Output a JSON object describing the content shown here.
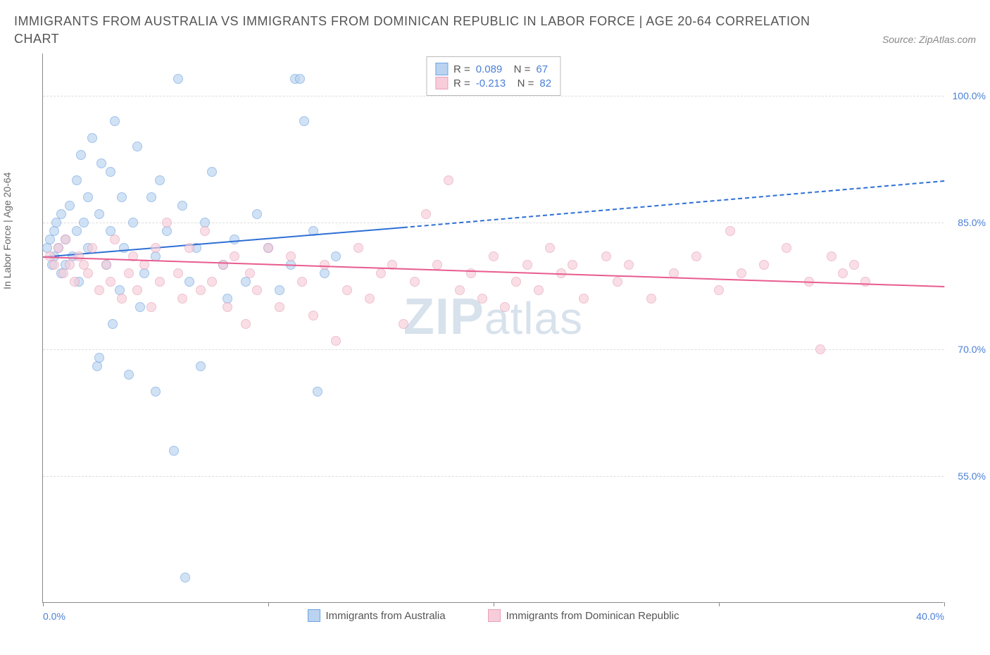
{
  "title": "IMMIGRANTS FROM AUSTRALIA VS IMMIGRANTS FROM DOMINICAN REPUBLIC IN LABOR FORCE | AGE 20-64 CORRELATION",
  "subtitle": "CHART",
  "source": "Source: ZipAtlas.com",
  "ylabel": "In Labor Force | Age 20-64",
  "watermark_a": "ZIP",
  "watermark_b": "atlas",
  "xaxis": {
    "min": 0,
    "max": 40,
    "ticks": [
      0,
      10,
      20,
      30,
      40
    ],
    "tick_labels": [
      "0.0%",
      "",
      "",
      "",
      "40.0%"
    ]
  },
  "yaxis": {
    "min": 40,
    "max": 105,
    "ticks": [
      55,
      70,
      85,
      100
    ],
    "tick_labels": [
      "55.0%",
      "70.0%",
      "85.0%",
      "100.0%"
    ]
  },
  "series": [
    {
      "key": "aus",
      "label": "Immigrants from Australia",
      "fill": "#b9d3f0",
      "stroke": "#6fa3e0",
      "line": "#2e6fd6",
      "R": "0.089",
      "N": "67",
      "reg": {
        "x0": 0,
        "y0": 81,
        "x1_solid": 16,
        "y1_solid": 84.5,
        "x1_dash": 40,
        "y1_dash": 90
      },
      "points": [
        [
          0.2,
          82
        ],
        [
          0.3,
          83
        ],
        [
          0.4,
          80
        ],
        [
          0.5,
          84
        ],
        [
          0.5,
          81
        ],
        [
          0.6,
          85
        ],
        [
          0.7,
          82
        ],
        [
          0.8,
          86
        ],
        [
          0.8,
          79
        ],
        [
          1.0,
          83
        ],
        [
          1.0,
          80
        ],
        [
          1.2,
          87
        ],
        [
          1.3,
          81
        ],
        [
          1.5,
          90
        ],
        [
          1.5,
          84
        ],
        [
          1.6,
          78
        ],
        [
          1.7,
          93
        ],
        [
          1.8,
          85
        ],
        [
          2.0,
          88
        ],
        [
          2.0,
          82
        ],
        [
          2.2,
          95
        ],
        [
          2.4,
          68
        ],
        [
          2.5,
          86
        ],
        [
          2.6,
          92
        ],
        [
          2.8,
          80
        ],
        [
          3.0,
          84
        ],
        [
          3.0,
          91
        ],
        [
          3.2,
          97
        ],
        [
          3.4,
          77
        ],
        [
          3.5,
          88
        ],
        [
          3.6,
          82
        ],
        [
          3.8,
          67
        ],
        [
          4.0,
          85
        ],
        [
          4.2,
          94
        ],
        [
          4.5,
          79
        ],
        [
          4.8,
          88
        ],
        [
          5.0,
          81
        ],
        [
          5.0,
          65
        ],
        [
          5.2,
          90
        ],
        [
          5.5,
          84
        ],
        [
          5.8,
          58
        ],
        [
          6.0,
          102
        ],
        [
          6.2,
          87
        ],
        [
          6.5,
          78
        ],
        [
          6.8,
          82
        ],
        [
          7.0,
          68
        ],
        [
          7.2,
          85
        ],
        [
          7.5,
          91
        ],
        [
          8.0,
          80
        ],
        [
          8.2,
          76
        ],
        [
          8.5,
          83
        ],
        [
          9.0,
          78
        ],
        [
          9.5,
          86
        ],
        [
          10.0,
          82
        ],
        [
          10.5,
          77
        ],
        [
          11.0,
          80
        ],
        [
          11.2,
          102
        ],
        [
          11.4,
          102
        ],
        [
          11.6,
          97
        ],
        [
          12.0,
          84
        ],
        [
          12.2,
          65
        ],
        [
          12.5,
          79
        ],
        [
          13.0,
          81
        ],
        [
          6.3,
          43
        ],
        [
          2.5,
          69
        ],
        [
          3.1,
          73
        ],
        [
          4.3,
          75
        ]
      ]
    },
    {
      "key": "dom",
      "label": "Immigrants from Dominican Republic",
      "fill": "#f6cdd9",
      "stroke": "#e8a0b8",
      "line": "#e85c8f",
      "R": "-0.213",
      "N": "82",
      "reg": {
        "x0": 0,
        "y0": 81,
        "x1_solid": 40,
        "y1_solid": 77.5,
        "x1_dash": 40,
        "y1_dash": 77.5
      },
      "points": [
        [
          0.3,
          81
        ],
        [
          0.5,
          80
        ],
        [
          0.7,
          82
        ],
        [
          0.9,
          79
        ],
        [
          1.0,
          83
        ],
        [
          1.2,
          80
        ],
        [
          1.4,
          78
        ],
        [
          1.6,
          81
        ],
        [
          1.8,
          80
        ],
        [
          2.0,
          79
        ],
        [
          2.2,
          82
        ],
        [
          2.5,
          77
        ],
        [
          2.8,
          80
        ],
        [
          3.0,
          78
        ],
        [
          3.2,
          83
        ],
        [
          3.5,
          76
        ],
        [
          3.8,
          79
        ],
        [
          4.0,
          81
        ],
        [
          4.2,
          77
        ],
        [
          4.5,
          80
        ],
        [
          4.8,
          75
        ],
        [
          5.0,
          82
        ],
        [
          5.2,
          78
        ],
        [
          5.5,
          85
        ],
        [
          6.0,
          79
        ],
        [
          6.2,
          76
        ],
        [
          6.5,
          82
        ],
        [
          7.0,
          77
        ],
        [
          7.2,
          84
        ],
        [
          7.5,
          78
        ],
        [
          8.0,
          80
        ],
        [
          8.2,
          75
        ],
        [
          8.5,
          81
        ],
        [
          9.0,
          73
        ],
        [
          9.2,
          79
        ],
        [
          9.5,
          77
        ],
        [
          10.0,
          82
        ],
        [
          10.5,
          75
        ],
        [
          11.0,
          81
        ],
        [
          11.5,
          78
        ],
        [
          12.0,
          74
        ],
        [
          12.5,
          80
        ],
        [
          13.0,
          71
        ],
        [
          13.5,
          77
        ],
        [
          14.0,
          82
        ],
        [
          14.5,
          76
        ],
        [
          15.0,
          79
        ],
        [
          15.5,
          80
        ],
        [
          16.0,
          73
        ],
        [
          16.5,
          78
        ],
        [
          17.0,
          86
        ],
        [
          17.5,
          80
        ],
        [
          18.0,
          90
        ],
        [
          18.5,
          77
        ],
        [
          19.0,
          79
        ],
        [
          19.5,
          76
        ],
        [
          20.0,
          81
        ],
        [
          20.5,
          75
        ],
        [
          21.0,
          78
        ],
        [
          21.5,
          80
        ],
        [
          22.0,
          77
        ],
        [
          22.5,
          82
        ],
        [
          23.0,
          79
        ],
        [
          23.5,
          80
        ],
        [
          24.0,
          76
        ],
        [
          25.0,
          81
        ],
        [
          25.5,
          78
        ],
        [
          26.0,
          80
        ],
        [
          27.0,
          76
        ],
        [
          28.0,
          79
        ],
        [
          29.0,
          81
        ],
        [
          30.0,
          77
        ],
        [
          30.5,
          84
        ],
        [
          31.0,
          79
        ],
        [
          32.0,
          80
        ],
        [
          33.0,
          82
        ],
        [
          34.0,
          78
        ],
        [
          35.0,
          81
        ],
        [
          35.5,
          79
        ],
        [
          36.0,
          80
        ],
        [
          34.5,
          70
        ],
        [
          36.5,
          78
        ]
      ]
    }
  ]
}
